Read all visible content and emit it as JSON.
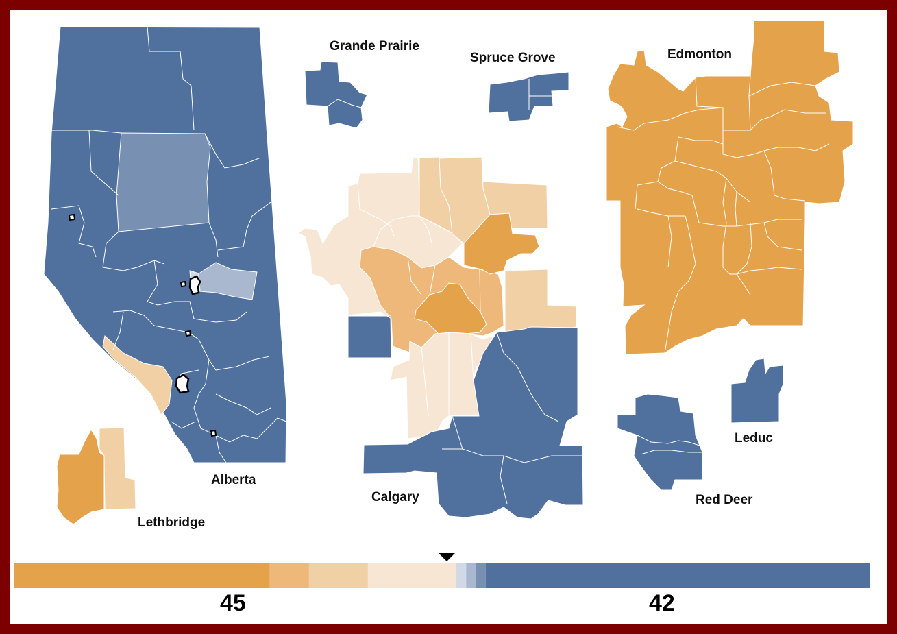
{
  "colors": {
    "ndp_strong": "#e4a24a",
    "ndp_lean": "#edb87a",
    "ndp_light": "#f2d0a6",
    "ndp_faint": "#f8e6d4",
    "ucp_faint": "#d2d9e6",
    "ucp_light": "#a9b7cf",
    "ucp_lean": "#7890b2",
    "ucp_strong": "#50709e",
    "border": "#7d0000"
  },
  "labels": {
    "alberta": "Alberta",
    "lethbridge": "Lethbridge",
    "grande_prairie": "Grande Prairie",
    "spruce_grove": "Spruce Grove",
    "calgary": "Calgary",
    "edmonton": "Edmonton",
    "leduc": "Leduc",
    "red_deer": "Red Deer"
  },
  "seat_bar": {
    "left_total": "45",
    "right_total": "42",
    "segments": [
      {
        "category": "ndp_strong",
        "seats": 26
      },
      {
        "category": "ndp_lean",
        "seats": 4
      },
      {
        "category": "ndp_light",
        "seats": 6
      },
      {
        "category": "ndp_faint",
        "seats": 9
      },
      {
        "category": "ucp_faint",
        "seats": 1
      },
      {
        "category": "ucp_light",
        "seats": 1
      },
      {
        "category": "ucp_lean",
        "seats": 1
      },
      {
        "category": "ucp_strong",
        "seats": 39
      }
    ],
    "majority_marker_seat": 44
  }
}
